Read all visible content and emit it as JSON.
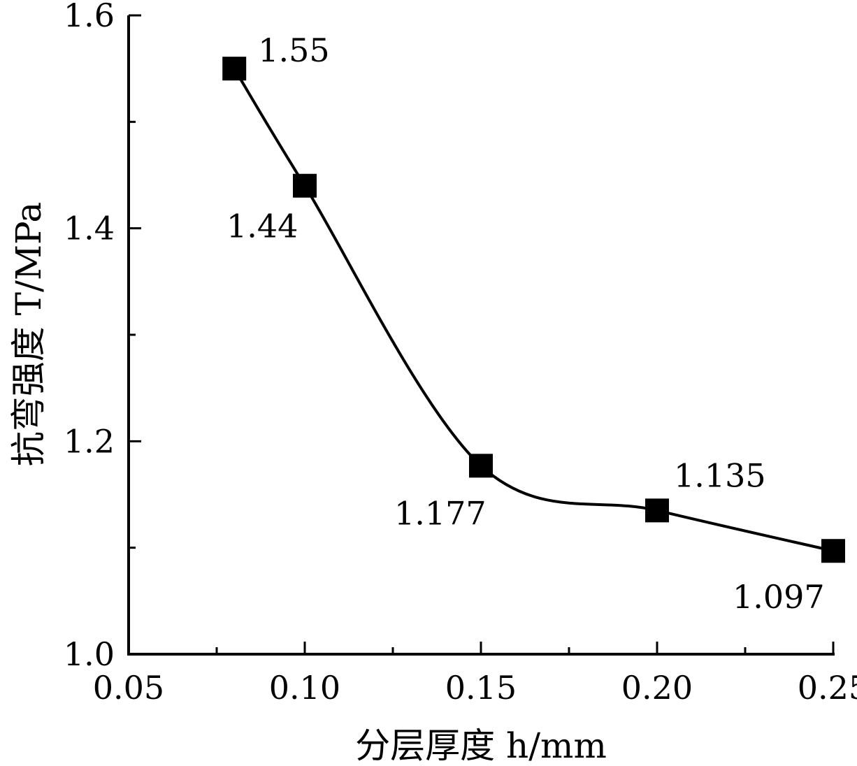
{
  "chart_data": {
    "type": "line",
    "title": "",
    "xlabel": "分层厚度 h/mm",
    "ylabel": "抗弯强度 T/MPa",
    "xlim": [
      0.05,
      0.25
    ],
    "ylim": [
      1.0,
      1.6
    ],
    "x_ticks": [
      "0.05",
      "0.10",
      "0.15",
      "0.20",
      "0.25"
    ],
    "y_ticks": [
      "1.0",
      "1.2",
      "1.4",
      "1.6"
    ],
    "grid": false,
    "legend": "none",
    "marker": "square",
    "smooth": true,
    "color": "#000000",
    "series": [
      {
        "x": [
          0.08,
          0.1,
          0.15,
          0.2,
          0.25
        ],
        "values": [
          1.55,
          1.44,
          1.177,
          1.135,
          1.097
        ],
        "labels": [
          "1.55",
          "1.44",
          "1.177",
          "1.135",
          "1.097"
        ]
      }
    ]
  }
}
